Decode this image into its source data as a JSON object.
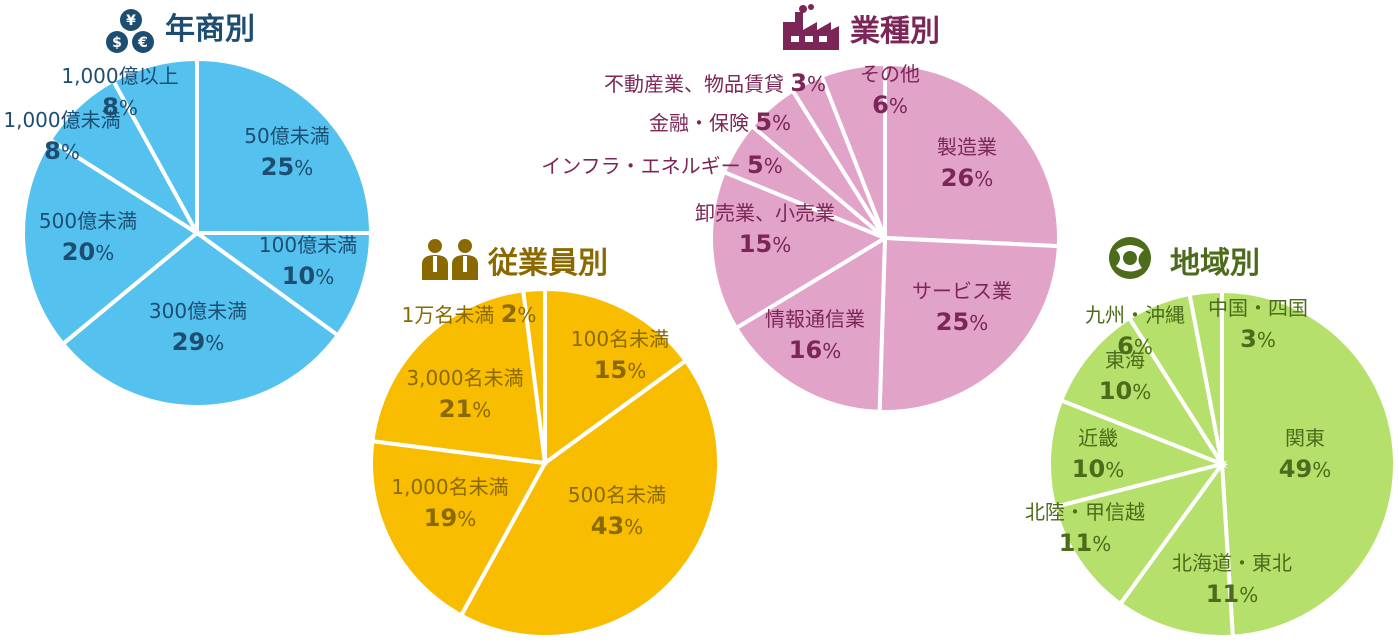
{
  "chart_data": [
    {
      "type": "pie",
      "title": "年商別",
      "icon": "coins-icon",
      "color": "#55C1EE",
      "text_color": "#1D4E72",
      "slices": [
        {
          "label": "50億未満",
          "value": 25
        },
        {
          "label": "100億未満",
          "value": 10
        },
        {
          "label": "300億未満",
          "value": 29
        },
        {
          "label": "500億未満",
          "value": 20
        },
        {
          "label": "1,000億未満",
          "value": 8
        },
        {
          "label": "1,000億以上",
          "value": 8
        }
      ]
    },
    {
      "type": "pie",
      "title": "従業員別",
      "icon": "people-icon",
      "color": "#F8BD00",
      "text_color": "#8A6A00",
      "slices": [
        {
          "label": "100名未満",
          "value": 15
        },
        {
          "label": "500名未満",
          "value": 43
        },
        {
          "label": "1,000名未満",
          "value": 19
        },
        {
          "label": "3,000名未満",
          "value": 21
        },
        {
          "label": "1万名未満",
          "value": 2
        }
      ]
    },
    {
      "type": "pie",
      "title": "業種別",
      "icon": "factory-icon",
      "color": "#E2A3C9",
      "text_color": "#7B2657",
      "slices": [
        {
          "label": "製造業",
          "value": 26
        },
        {
          "label": "サービス業",
          "value": 25
        },
        {
          "label": "情報通信業",
          "value": 16
        },
        {
          "label": "卸売業、小売業",
          "value": 15
        },
        {
          "label": "インフラ・エネルギー",
          "value": 5
        },
        {
          "label": "金融・保険",
          "value": 5
        },
        {
          "label": "不動産業、物品賃貸",
          "value": 3
        },
        {
          "label": "その他",
          "value": 6
        }
      ]
    },
    {
      "type": "pie",
      "title": "地域別",
      "icon": "globe-icon",
      "color": "#B5E06B",
      "text_color": "#4C6B1B",
      "slices": [
        {
          "label": "関東",
          "value": 49
        },
        {
          "label": "北海道・東北",
          "value": 11
        },
        {
          "label": "北陸・甲信越",
          "value": 11
        },
        {
          "label": "近畿",
          "value": 10
        },
        {
          "label": "東海",
          "value": 10
        },
        {
          "label": "九州・沖縄",
          "value": 6
        },
        {
          "label": "中国・四国",
          "value": 3
        }
      ]
    }
  ]
}
